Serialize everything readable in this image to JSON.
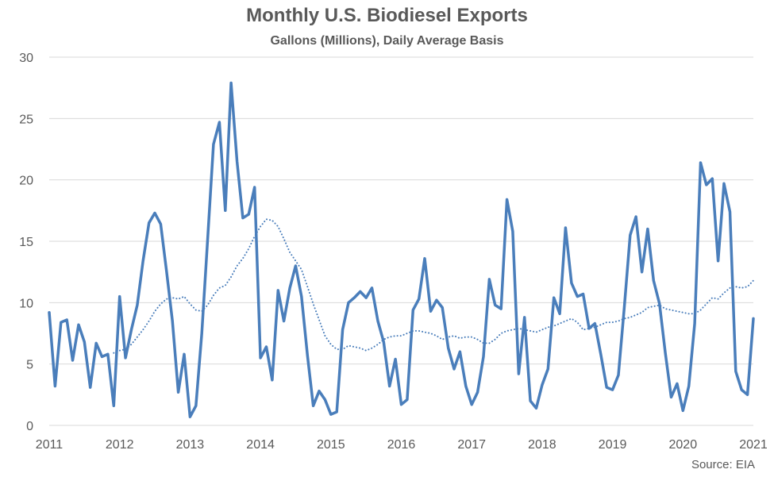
{
  "chart_data": {
    "type": "line",
    "title": "Monthly U.S. Biodiesel Exports",
    "subtitle": "Gallons (Millions), Daily Average Basis",
    "source": "Source: EIA",
    "xlabel": "",
    "ylabel": "",
    "xlim": [
      2011,
      2021
    ],
    "ylim": [
      0,
      30
    ],
    "x_ticks": [
      "2011",
      "2012",
      "2013",
      "2014",
      "2015",
      "2016",
      "2017",
      "2018",
      "2019",
      "2020",
      "2021"
    ],
    "y_ticks": [
      "0",
      "5",
      "10",
      "15",
      "20",
      "25",
      "30"
    ],
    "grid": true,
    "legend": "none",
    "colors": {
      "line": "#4a7ebb",
      "grid": "#d9d9d9",
      "text": "#595959"
    },
    "series": [
      {
        "style": "solid",
        "x": [
          2011.0,
          2011.083,
          2011.167,
          2011.25,
          2011.333,
          2011.417,
          2011.5,
          2011.583,
          2011.667,
          2011.75,
          2011.833,
          2011.917,
          2012.0,
          2012.083,
          2012.167,
          2012.25,
          2012.333,
          2012.417,
          2012.5,
          2012.583,
          2012.667,
          2012.75,
          2012.833,
          2012.917,
          2013.0,
          2013.083,
          2013.167,
          2013.25,
          2013.333,
          2013.417,
          2013.5,
          2013.583,
          2013.667,
          2013.75,
          2013.833,
          2013.917,
          2014.0,
          2014.083,
          2014.167,
          2014.25,
          2014.333,
          2014.417,
          2014.5,
          2014.583,
          2014.667,
          2014.75,
          2014.833,
          2014.917,
          2015.0,
          2015.083,
          2015.167,
          2015.25,
          2015.333,
          2015.417,
          2015.5,
          2015.583,
          2015.667,
          2015.75,
          2015.833,
          2015.917,
          2016.0,
          2016.083,
          2016.167,
          2016.25,
          2016.333,
          2016.417,
          2016.5,
          2016.583,
          2016.667,
          2016.75,
          2016.833,
          2016.917,
          2017.0,
          2017.083,
          2017.167,
          2017.25,
          2017.333,
          2017.417,
          2017.5,
          2017.583,
          2017.667,
          2017.75,
          2017.833,
          2017.917,
          2018.0,
          2018.083,
          2018.167,
          2018.25,
          2018.333,
          2018.417,
          2018.5,
          2018.583,
          2018.667,
          2018.75,
          2018.833,
          2018.917,
          2019.0,
          2019.083,
          2019.167,
          2019.25,
          2019.333,
          2019.417,
          2019.5,
          2019.583,
          2019.667,
          2019.75,
          2019.833,
          2019.917,
          2020.0,
          2020.083,
          2020.167,
          2020.25,
          2020.333,
          2020.417,
          2020.5,
          2020.583,
          2020.667,
          2020.75,
          2020.833,
          2020.917,
          2021.0
        ],
        "values": [
          9.2,
          3.2,
          8.4,
          8.6,
          5.3,
          8.2,
          6.8,
          3.1,
          6.7,
          5.6,
          5.8,
          1.6,
          10.5,
          5.5,
          7.8,
          9.8,
          13.4,
          16.5,
          17.3,
          16.4,
          12.5,
          8.5,
          2.7,
          5.8,
          0.7,
          1.6,
          7.5,
          15.2,
          22.9,
          24.7,
          17.5,
          27.9,
          21.5,
          16.9,
          17.2,
          19.4,
          5.5,
          6.4,
          3.7,
          11.0,
          8.5,
          11.2,
          13.0,
          10.5,
          5.7,
          1.6,
          2.8,
          2.1,
          0.9,
          1.1,
          7.8,
          10.0,
          10.4,
          10.9,
          10.4,
          11.2,
          8.5,
          6.8,
          3.2,
          5.4,
          1.7,
          2.1,
          9.4,
          10.3,
          13.6,
          9.3,
          10.2,
          9.6,
          6.3,
          4.6,
          6.0,
          3.2,
          1.7,
          2.7,
          5.6,
          11.9,
          9.8,
          9.5,
          18.4,
          15.8,
          4.2,
          8.8,
          2.0,
          1.4,
          3.3,
          4.6,
          10.4,
          9.1,
          16.1,
          11.6,
          10.5,
          10.7,
          7.9,
          8.3,
          5.8,
          3.1,
          2.9,
          4.1,
          9.6,
          15.5,
          17.0,
          12.5,
          16.0,
          11.8,
          9.9,
          5.9,
          2.3,
          3.4,
          1.2,
          3.2,
          8.3,
          21.4,
          19.6,
          20.1,
          13.4,
          19.7,
          17.4,
          4.4,
          2.9,
          2.5,
          8.7
        ]
      },
      {
        "style": "dotted",
        "x": [
          2011.917,
          2012.0,
          2012.083,
          2012.167,
          2012.25,
          2012.333,
          2012.417,
          2012.5,
          2012.583,
          2012.667,
          2012.75,
          2012.833,
          2012.917,
          2013.0,
          2013.083,
          2013.167,
          2013.25,
          2013.333,
          2013.417,
          2013.5,
          2013.583,
          2013.667,
          2013.75,
          2013.833,
          2013.917,
          2014.0,
          2014.083,
          2014.167,
          2014.25,
          2014.333,
          2014.417,
          2014.5,
          2014.583,
          2014.667,
          2014.75,
          2014.833,
          2014.917,
          2015.0,
          2015.083,
          2015.167,
          2015.25,
          2015.333,
          2015.417,
          2015.5,
          2015.583,
          2015.667,
          2015.75,
          2015.833,
          2015.917,
          2016.0,
          2016.083,
          2016.167,
          2016.25,
          2016.333,
          2016.417,
          2016.5,
          2016.583,
          2016.667,
          2016.75,
          2016.833,
          2016.917,
          2017.0,
          2017.083,
          2017.167,
          2017.25,
          2017.333,
          2017.417,
          2017.5,
          2017.583,
          2017.667,
          2017.75,
          2017.833,
          2017.917,
          2018.0,
          2018.083,
          2018.167,
          2018.25,
          2018.333,
          2018.417,
          2018.5,
          2018.583,
          2018.667,
          2018.75,
          2018.833,
          2018.917,
          2019.0,
          2019.083,
          2019.167,
          2019.25,
          2019.333,
          2019.417,
          2019.5,
          2019.583,
          2019.667,
          2019.75,
          2019.833,
          2019.917,
          2020.0,
          2020.083,
          2020.167,
          2020.25,
          2020.333,
          2020.417,
          2020.5,
          2020.583,
          2020.667,
          2020.75,
          2020.833,
          2020.917,
          2021.0
        ],
        "values": [
          5.9,
          6.1,
          6.2,
          6.6,
          7.2,
          7.8,
          8.5,
          9.3,
          9.9,
          10.3,
          10.4,
          10.3,
          10.5,
          9.9,
          9.4,
          9.3,
          9.8,
          10.6,
          11.2,
          11.4,
          12.1,
          13.0,
          13.6,
          14.4,
          15.4,
          16.2,
          16.8,
          16.7,
          16.2,
          15.2,
          14.1,
          13.4,
          12.7,
          11.3,
          9.9,
          8.6,
          7.3,
          6.6,
          6.2,
          6.2,
          6.5,
          6.4,
          6.3,
          6.1,
          6.3,
          6.6,
          7.0,
          7.2,
          7.3,
          7.3,
          7.5,
          7.7,
          7.7,
          7.6,
          7.5,
          7.3,
          7.0,
          7.2,
          7.3,
          7.1,
          7.2,
          7.2,
          7.0,
          6.7,
          6.7,
          7.0,
          7.5,
          7.7,
          7.8,
          7.9,
          7.8,
          7.7,
          7.6,
          7.8,
          8.0,
          8.1,
          8.3,
          8.5,
          8.7,
          8.4,
          7.8,
          7.9,
          8.0,
          8.2,
          8.4,
          8.4,
          8.5,
          8.7,
          8.8,
          9.0,
          9.2,
          9.6,
          9.7,
          9.8,
          9.5,
          9.4,
          9.3,
          9.2,
          9.1,
          9.1,
          9.4,
          9.9,
          10.4,
          10.3,
          10.8,
          11.2,
          11.3,
          11.2,
          11.3,
          11.8
        ]
      }
    ]
  }
}
